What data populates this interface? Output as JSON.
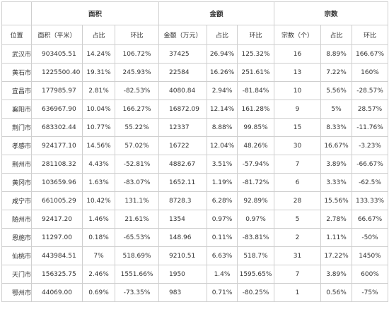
{
  "groups": {
    "area": "面积",
    "amount": "金额",
    "count": "宗数"
  },
  "sub_headers": {
    "location": "位置",
    "area": "面积（平米）",
    "area_share": "占比",
    "area_change": "环比",
    "amount": "金额（万元）",
    "amount_share": "占比",
    "amount_change": "环比",
    "count": "宗数（个）",
    "count_share": "占比",
    "count_change": "环比"
  },
  "rows": [
    [
      "武汉市",
      "903405.51",
      "14.24%",
      "106.72%",
      "37425",
      "26.94%",
      "125.32%",
      "16",
      "8.89%",
      "166.67%"
    ],
    [
      "黄石市",
      "1225500.40",
      "19.31%",
      "245.93%",
      "22584",
      "16.26%",
      "251.61%",
      "13",
      "7.22%",
      "160%"
    ],
    [
      "宜昌市",
      "177985.97",
      "2.81%",
      "-82.53%",
      "4080.84",
      "2.94%",
      "-81.84%",
      "10",
      "5.56%",
      "-28.57%"
    ],
    [
      "襄阳市",
      "636967.90",
      "10.04%",
      "166.27%",
      "16872.09",
      "12.14%",
      "161.28%",
      "9",
      "5%",
      "28.57%"
    ],
    [
      "荆门市",
      "683302.44",
      "10.77%",
      "55.22%",
      "12337",
      "8.88%",
      "99.85%",
      "15",
      "8.33%",
      "-11.76%"
    ],
    [
      "孝感市",
      "924177.10",
      "14.56%",
      "57.02%",
      "16722",
      "12.04%",
      "48.26%",
      "30",
      "16.67%",
      "-3.23%"
    ],
    [
      "荆州市",
      "281108.32",
      "4.43%",
      "-52.81%",
      "4882.67",
      "3.51%",
      "-57.94%",
      "7",
      "3.89%",
      "-66.67%"
    ],
    [
      "黄冈市",
      "103659.96",
      "1.63%",
      "-83.07%",
      "1652.11",
      "1.19%",
      "-81.72%",
      "6",
      "3.33%",
      "-62.5%"
    ],
    [
      "咸宁市",
      "661005.29",
      "10.42%",
      "131.1%",
      "8728.3",
      "6.28%",
      "92.89%",
      "28",
      "15.56%",
      "133.33%"
    ],
    [
      "随州市",
      "92417.20",
      "1.46%",
      "21.61%",
      "1354",
      "0.97%",
      "0.97%",
      "5",
      "2.78%",
      "66.67%"
    ],
    [
      "恩施市",
      "11297.00",
      "0.18%",
      "-65.53%",
      "148.96",
      "0.11%",
      "-83.81%",
      "2",
      "1.11%",
      "-50%"
    ],
    [
      "仙桃市",
      "443984.51",
      "7%",
      "518.69%",
      "9210.51",
      "6.63%",
      "518.7%",
      "31",
      "17.22%",
      "1450%"
    ],
    [
      "天门市",
      "156325.75",
      "2.46%",
      "1551.66%",
      "1950",
      "1.4%",
      "1595.65%",
      "7",
      "3.89%",
      "600%"
    ],
    [
      "鄂州市",
      "44069.00",
      "0.69%",
      "-73.35%",
      "983",
      "0.71%",
      "-80.25%",
      "1",
      "0.56%",
      "-75%"
    ]
  ]
}
